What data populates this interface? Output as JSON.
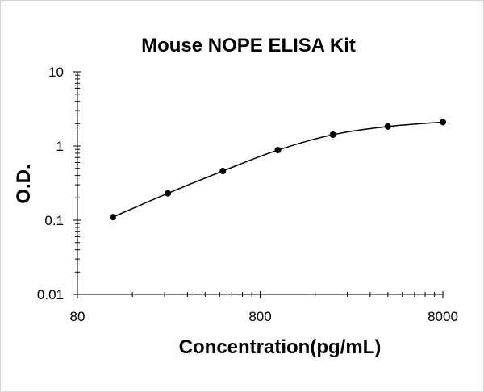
{
  "chart_data": {
    "type": "line",
    "title": "Mouse NOPE ELISA Kit",
    "xlabel": "Concentration(pg/mL)",
    "ylabel": "O.D.",
    "x_scale": "log",
    "y_scale": "log",
    "xlim": [
      80,
      8000
    ],
    "ylim": [
      0.01,
      10
    ],
    "x_ticks": [
      80,
      800,
      8000
    ],
    "y_ticks": [
      0.01,
      0.1,
      1,
      10
    ],
    "x_tick_labels": [
      "80",
      "800",
      "8000"
    ],
    "y_tick_labels": [
      "0.01",
      "0.1",
      "1",
      "10"
    ],
    "grid": false,
    "legend": "none",
    "series": [
      {
        "x": [
          125,
          250,
          500,
          1000,
          2000,
          4000,
          8000
        ],
        "y": [
          0.11,
          0.23,
          0.46,
          0.88,
          1.42,
          1.83,
          2.1
        ]
      }
    ],
    "colors": {
      "line": "#000000",
      "marker": "#000000",
      "axis": "#000000"
    }
  }
}
